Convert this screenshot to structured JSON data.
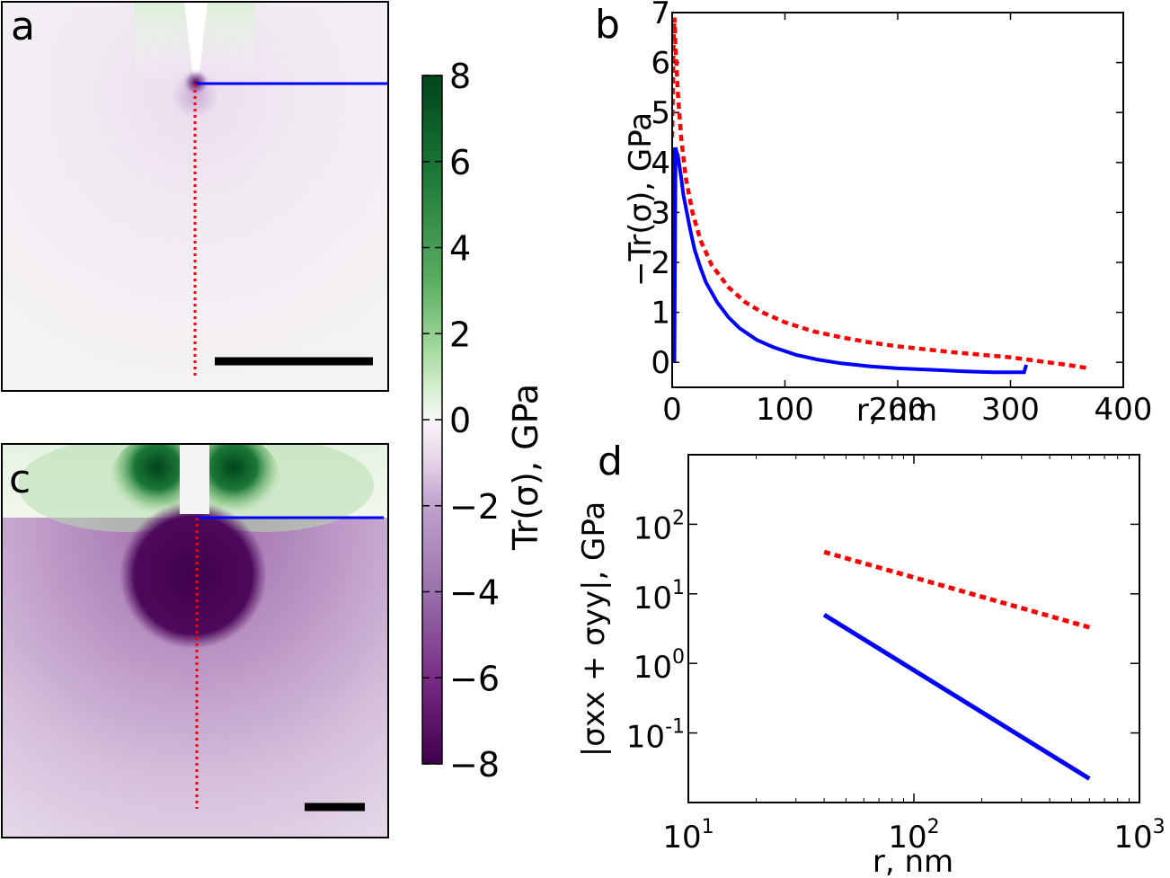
{
  "panel_labels": {
    "a": "a",
    "b": "b",
    "c": "c",
    "d": "d"
  },
  "colorbar": {
    "label": "Tr(σ), GPa",
    "ticks": [
      "8",
      "6",
      "4",
      "2",
      "0",
      "−2",
      "−4",
      "−6",
      "−8"
    ],
    "range": [
      -8,
      8
    ],
    "colors": {
      "high": "#00441b",
      "mid": "#f7f7f7",
      "low": "#40004b"
    }
  },
  "colors": {
    "solid": "#0000ff",
    "dotted": "#ff0000",
    "frame": "#000000"
  },
  "chart_data": [
    {
      "id": "b",
      "type": "line",
      "xlabel": "r, nm",
      "ylabel": "−Tr(σ), GPa",
      "xlim": [
        0,
        400
      ],
      "ylim": [
        -0.5,
        7
      ],
      "xticks": [
        "0",
        "100",
        "200",
        "300",
        "400"
      ],
      "yticks": [
        "0",
        "1",
        "2",
        "3",
        "4",
        "5",
        "6",
        "7"
      ],
      "series": [
        {
          "name": "solid",
          "style": "solid",
          "color": "#0000ff",
          "x": [
            0,
            1,
            2,
            3,
            4,
            5,
            6,
            8,
            10,
            13,
            16,
            20,
            25,
            30,
            40,
            50,
            60,
            75,
            90,
            110,
            130,
            150,
            175,
            200,
            230,
            260,
            285,
            300,
            310,
            312,
            314
          ],
          "y": [
            0,
            4.3,
            0,
            4.3,
            4.2,
            4.15,
            4.0,
            3.7,
            3.35,
            3.0,
            2.65,
            2.25,
            1.9,
            1.6,
            1.2,
            0.9,
            0.68,
            0.45,
            0.3,
            0.15,
            0.05,
            -0.02,
            -0.08,
            -0.12,
            -0.15,
            -0.18,
            -0.2,
            -0.2,
            -0.2,
            -0.2,
            -0.05
          ]
        },
        {
          "name": "dotted",
          "style": "dotted",
          "color": "#ff0000",
          "x": [
            0,
            1,
            2,
            3,
            5,
            8,
            12,
            18,
            25,
            35,
            50,
            65,
            80,
            100,
            125,
            150,
            175,
            200,
            250,
            300,
            350,
            370
          ],
          "y": [
            4.5,
            6.2,
            6.9,
            6.3,
            5.4,
            4.5,
            3.7,
            3.0,
            2.45,
            1.95,
            1.5,
            1.2,
            1.0,
            0.8,
            0.62,
            0.5,
            0.4,
            0.32,
            0.2,
            0.1,
            -0.05,
            -0.12
          ]
        }
      ]
    },
    {
      "id": "d",
      "type": "line",
      "xscale": "log",
      "yscale": "log",
      "xlabel": "r, nm",
      "ylabel": "|σxx + σyy|, GPa",
      "xlim": [
        10,
        1000
      ],
      "ylim": [
        0.01,
        1000
      ],
      "xticks": [
        {
          "base": "10",
          "exp": "1"
        },
        {
          "base": "10",
          "exp": "2"
        },
        {
          "base": "10",
          "exp": "3"
        }
      ],
      "yticks": [
        {
          "base": "10",
          "exp": "-1"
        },
        {
          "base": "10",
          "exp": "0"
        },
        {
          "base": "10",
          "exp": "1"
        },
        {
          "base": "10",
          "exp": "2"
        }
      ],
      "series": [
        {
          "name": "dotted",
          "style": "dotted",
          "color": "#ff0000",
          "x": [
            40,
            600
          ],
          "y": [
            40,
            3.3
          ]
        },
        {
          "name": "solid",
          "style": "solid",
          "color": "#0000ff",
          "x": [
            40,
            600
          ],
          "y": [
            5,
            0.022
          ]
        }
      ]
    }
  ],
  "field_maps": [
    {
      "id": "a",
      "scale_bar": true
    },
    {
      "id": "c",
      "scale_bar": true
    }
  ]
}
